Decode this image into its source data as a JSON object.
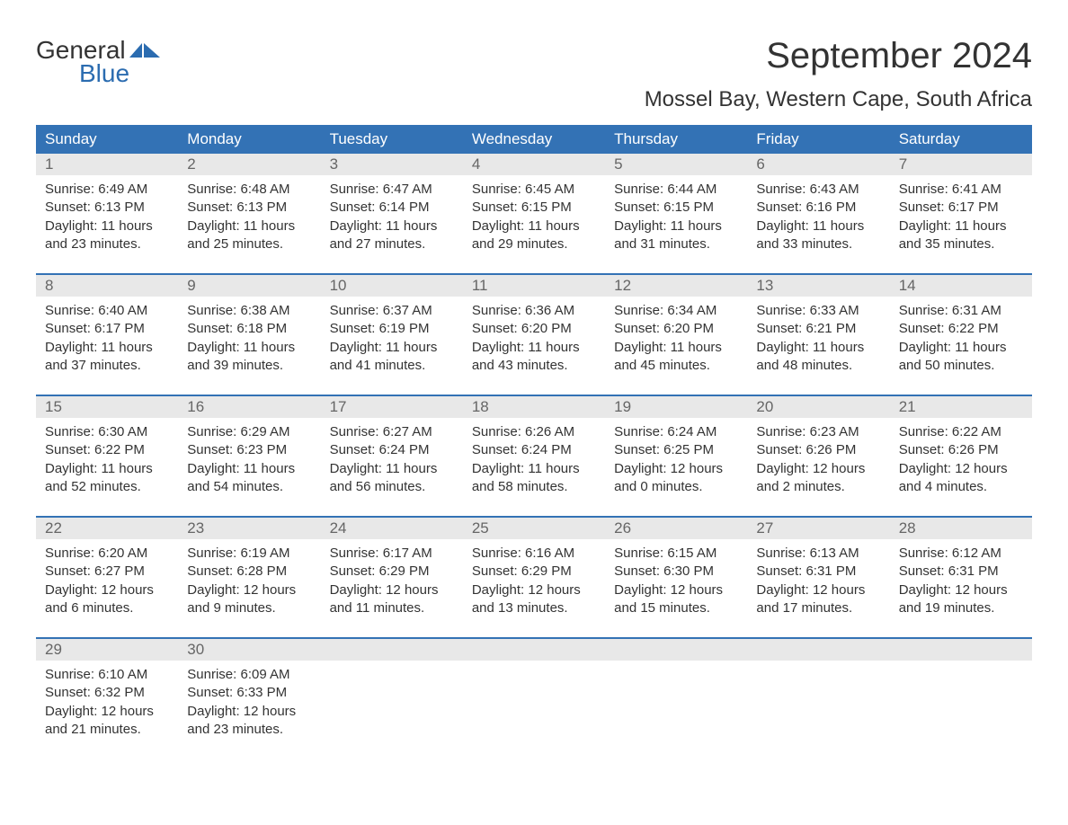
{
  "logo": {
    "text_general": "General",
    "text_blue": "Blue"
  },
  "title": "September 2024",
  "location": "Mossel Bay, Western Cape, South Africa",
  "colors": {
    "header_bg": "#3372b5",
    "header_text": "#ffffff",
    "day_number_bg": "#e8e8e8",
    "day_number_text": "#666666",
    "body_text": "#333333",
    "logo_blue": "#2b6cb0",
    "week_border": "#3372b5"
  },
  "day_headers": [
    "Sunday",
    "Monday",
    "Tuesday",
    "Wednesday",
    "Thursday",
    "Friday",
    "Saturday"
  ],
  "weeks": [
    [
      {
        "day": "1",
        "sunrise": "Sunrise: 6:49 AM",
        "sunset": "Sunset: 6:13 PM",
        "daylight1": "Daylight: 11 hours",
        "daylight2": "and 23 minutes."
      },
      {
        "day": "2",
        "sunrise": "Sunrise: 6:48 AM",
        "sunset": "Sunset: 6:13 PM",
        "daylight1": "Daylight: 11 hours",
        "daylight2": "and 25 minutes."
      },
      {
        "day": "3",
        "sunrise": "Sunrise: 6:47 AM",
        "sunset": "Sunset: 6:14 PM",
        "daylight1": "Daylight: 11 hours",
        "daylight2": "and 27 minutes."
      },
      {
        "day": "4",
        "sunrise": "Sunrise: 6:45 AM",
        "sunset": "Sunset: 6:15 PM",
        "daylight1": "Daylight: 11 hours",
        "daylight2": "and 29 minutes."
      },
      {
        "day": "5",
        "sunrise": "Sunrise: 6:44 AM",
        "sunset": "Sunset: 6:15 PM",
        "daylight1": "Daylight: 11 hours",
        "daylight2": "and 31 minutes."
      },
      {
        "day": "6",
        "sunrise": "Sunrise: 6:43 AM",
        "sunset": "Sunset: 6:16 PM",
        "daylight1": "Daylight: 11 hours",
        "daylight2": "and 33 minutes."
      },
      {
        "day": "7",
        "sunrise": "Sunrise: 6:41 AM",
        "sunset": "Sunset: 6:17 PM",
        "daylight1": "Daylight: 11 hours",
        "daylight2": "and 35 minutes."
      }
    ],
    [
      {
        "day": "8",
        "sunrise": "Sunrise: 6:40 AM",
        "sunset": "Sunset: 6:17 PM",
        "daylight1": "Daylight: 11 hours",
        "daylight2": "and 37 minutes."
      },
      {
        "day": "9",
        "sunrise": "Sunrise: 6:38 AM",
        "sunset": "Sunset: 6:18 PM",
        "daylight1": "Daylight: 11 hours",
        "daylight2": "and 39 minutes."
      },
      {
        "day": "10",
        "sunrise": "Sunrise: 6:37 AM",
        "sunset": "Sunset: 6:19 PM",
        "daylight1": "Daylight: 11 hours",
        "daylight2": "and 41 minutes."
      },
      {
        "day": "11",
        "sunrise": "Sunrise: 6:36 AM",
        "sunset": "Sunset: 6:20 PM",
        "daylight1": "Daylight: 11 hours",
        "daylight2": "and 43 minutes."
      },
      {
        "day": "12",
        "sunrise": "Sunrise: 6:34 AM",
        "sunset": "Sunset: 6:20 PM",
        "daylight1": "Daylight: 11 hours",
        "daylight2": "and 45 minutes."
      },
      {
        "day": "13",
        "sunrise": "Sunrise: 6:33 AM",
        "sunset": "Sunset: 6:21 PM",
        "daylight1": "Daylight: 11 hours",
        "daylight2": "and 48 minutes."
      },
      {
        "day": "14",
        "sunrise": "Sunrise: 6:31 AM",
        "sunset": "Sunset: 6:22 PM",
        "daylight1": "Daylight: 11 hours",
        "daylight2": "and 50 minutes."
      }
    ],
    [
      {
        "day": "15",
        "sunrise": "Sunrise: 6:30 AM",
        "sunset": "Sunset: 6:22 PM",
        "daylight1": "Daylight: 11 hours",
        "daylight2": "and 52 minutes."
      },
      {
        "day": "16",
        "sunrise": "Sunrise: 6:29 AM",
        "sunset": "Sunset: 6:23 PM",
        "daylight1": "Daylight: 11 hours",
        "daylight2": "and 54 minutes."
      },
      {
        "day": "17",
        "sunrise": "Sunrise: 6:27 AM",
        "sunset": "Sunset: 6:24 PM",
        "daylight1": "Daylight: 11 hours",
        "daylight2": "and 56 minutes."
      },
      {
        "day": "18",
        "sunrise": "Sunrise: 6:26 AM",
        "sunset": "Sunset: 6:24 PM",
        "daylight1": "Daylight: 11 hours",
        "daylight2": "and 58 minutes."
      },
      {
        "day": "19",
        "sunrise": "Sunrise: 6:24 AM",
        "sunset": "Sunset: 6:25 PM",
        "daylight1": "Daylight: 12 hours",
        "daylight2": "and 0 minutes."
      },
      {
        "day": "20",
        "sunrise": "Sunrise: 6:23 AM",
        "sunset": "Sunset: 6:26 PM",
        "daylight1": "Daylight: 12 hours",
        "daylight2": "and 2 minutes."
      },
      {
        "day": "21",
        "sunrise": "Sunrise: 6:22 AM",
        "sunset": "Sunset: 6:26 PM",
        "daylight1": "Daylight: 12 hours",
        "daylight2": "and 4 minutes."
      }
    ],
    [
      {
        "day": "22",
        "sunrise": "Sunrise: 6:20 AM",
        "sunset": "Sunset: 6:27 PM",
        "daylight1": "Daylight: 12 hours",
        "daylight2": "and 6 minutes."
      },
      {
        "day": "23",
        "sunrise": "Sunrise: 6:19 AM",
        "sunset": "Sunset: 6:28 PM",
        "daylight1": "Daylight: 12 hours",
        "daylight2": "and 9 minutes."
      },
      {
        "day": "24",
        "sunrise": "Sunrise: 6:17 AM",
        "sunset": "Sunset: 6:29 PM",
        "daylight1": "Daylight: 12 hours",
        "daylight2": "and 11 minutes."
      },
      {
        "day": "25",
        "sunrise": "Sunrise: 6:16 AM",
        "sunset": "Sunset: 6:29 PM",
        "daylight1": "Daylight: 12 hours",
        "daylight2": "and 13 minutes."
      },
      {
        "day": "26",
        "sunrise": "Sunrise: 6:15 AM",
        "sunset": "Sunset: 6:30 PM",
        "daylight1": "Daylight: 12 hours",
        "daylight2": "and 15 minutes."
      },
      {
        "day": "27",
        "sunrise": "Sunrise: 6:13 AM",
        "sunset": "Sunset: 6:31 PM",
        "daylight1": "Daylight: 12 hours",
        "daylight2": "and 17 minutes."
      },
      {
        "day": "28",
        "sunrise": "Sunrise: 6:12 AM",
        "sunset": "Sunset: 6:31 PM",
        "daylight1": "Daylight: 12 hours",
        "daylight2": "and 19 minutes."
      }
    ],
    [
      {
        "day": "29",
        "sunrise": "Sunrise: 6:10 AM",
        "sunset": "Sunset: 6:32 PM",
        "daylight1": "Daylight: 12 hours",
        "daylight2": "and 21 minutes."
      },
      {
        "day": "30",
        "sunrise": "Sunrise: 6:09 AM",
        "sunset": "Sunset: 6:33 PM",
        "daylight1": "Daylight: 12 hours",
        "daylight2": "and 23 minutes."
      },
      null,
      null,
      null,
      null,
      null
    ]
  ]
}
